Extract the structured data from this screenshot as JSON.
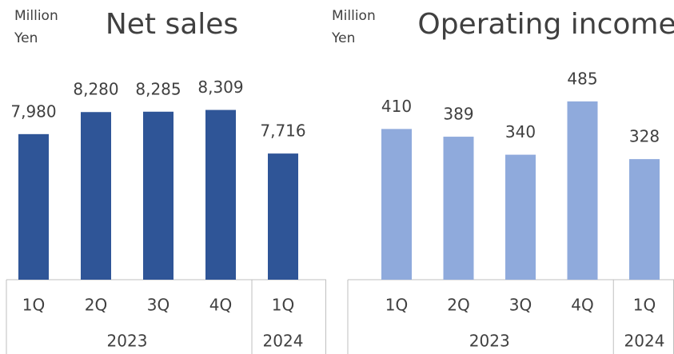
{
  "chart_data": [
    {
      "type": "bar",
      "title": "Net sales",
      "unit": "Million Yen",
      "categories": [
        "1Q",
        "2Q",
        "3Q",
        "4Q",
        "1Q"
      ],
      "category_groups": [
        "2023",
        "2023",
        "2023",
        "2023",
        "2024"
      ],
      "values": [
        7980,
        8280,
        8285,
        8309,
        7716
      ],
      "value_labels": [
        "7,980",
        "8,280",
        "8,285",
        "8,309",
        "7,716"
      ],
      "color": "#2f5597",
      "ylim": [
        6000,
        9000
      ]
    },
    {
      "type": "bar",
      "title": "Operating income",
      "unit": "Million Yen",
      "categories": [
        "1Q",
        "2Q",
        "3Q",
        "4Q",
        "1Q"
      ],
      "category_groups": [
        "2023",
        "2023",
        "2023",
        "2023",
        "2024"
      ],
      "values": [
        410,
        389,
        340,
        485,
        328
      ],
      "color": "#8faadc",
      "ylim": [
        0,
        600
      ]
    }
  ]
}
